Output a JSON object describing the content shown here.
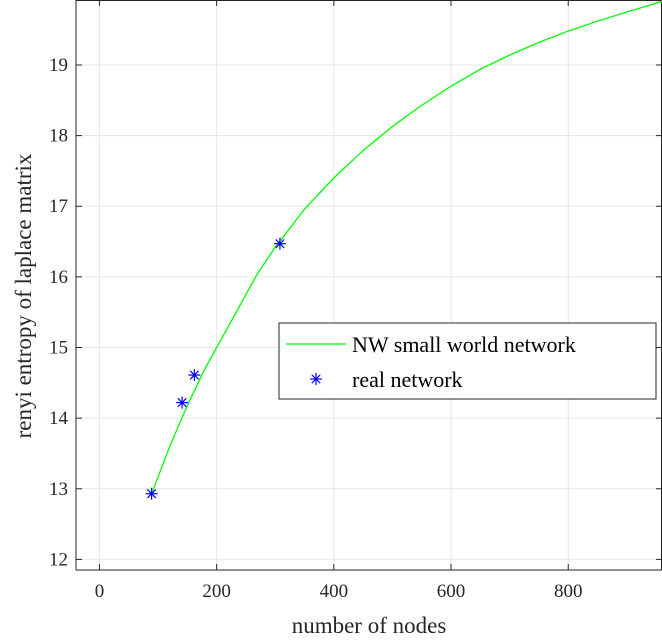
{
  "chart_data": {
    "type": "line",
    "title": "",
    "xlabel": "number of nodes",
    "ylabel": "renyi entropy of laplace matrix",
    "xlim": [
      -40,
      960
    ],
    "ylim": [
      11.85,
      19.92
    ],
    "xticks": [
      0,
      200,
      400,
      600,
      800
    ],
    "yticks": [
      12,
      13,
      14,
      15,
      16,
      17,
      18,
      19
    ],
    "xtick_labels": [
      "0",
      "200",
      "400",
      "600",
      "800"
    ],
    "ytick_labels": [
      "12",
      "13",
      "14",
      "15",
      "16",
      "17",
      "18",
      "19"
    ],
    "grid": true,
    "legend_position": "center-right",
    "series": [
      {
        "name": "NW small world network",
        "style": "line",
        "color": "#00ff00",
        "x": [
          90,
          120,
          150,
          180,
          210,
          240,
          270,
          300,
          350,
          400,
          450,
          500,
          550,
          600,
          650,
          700,
          750,
          800,
          850,
          900,
          960
        ],
        "y": [
          12.95,
          13.6,
          14.18,
          14.7,
          15.15,
          15.6,
          16.05,
          16.42,
          16.96,
          17.4,
          17.79,
          18.13,
          18.43,
          18.7,
          18.94,
          19.14,
          19.32,
          19.48,
          19.62,
          19.75,
          19.9
        ]
      },
      {
        "name": "real network",
        "style": "marker",
        "marker": "asterisk",
        "color": "#0000ff",
        "x": [
          89,
          141,
          162,
          308
        ],
        "y": [
          12.93,
          14.22,
          14.61,
          16.47
        ]
      }
    ]
  }
}
